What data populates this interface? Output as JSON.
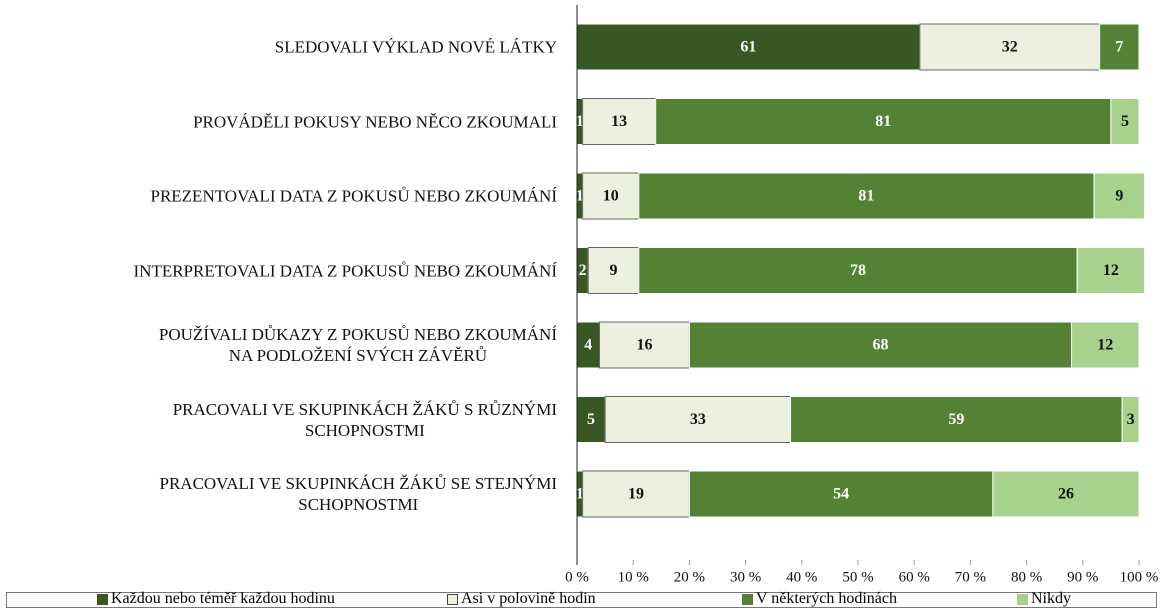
{
  "chart_data": {
    "type": "stacked_bar_horizontal",
    "categories": [
      "SLEDOVALI VÝKLAD NOVÉ LÁTKY",
      "PROVÁDĚLI POKUSY NEBO NĚCO ZKOUMALI",
      "PREZENTOVALI DATA Z POKUSŮ NEBO ZKOUMÁNÍ",
      "INTERPRETOVALI DATA Z POKUSŮ NEBO ZKOUMÁNÍ",
      "POUŽÍVALI DŮKAZY Z POKUSŮ NEBO ZKOUMÁNÍ\nNA PODLOŽENÍ SVÝCH ZÁVĚRŮ",
      "PRACOVALI VE SKUPINKÁCH ŽÁKŮ S RŮZNÝMI\nSCHOPNOSTMI",
      "PRACOVALI VE SKUPINKÁCH ŽÁKŮ SE STEJNÝMI\nSCHOPNOSTMI"
    ],
    "series": [
      {
        "name": "Každou nebo téměř každou hodinu",
        "color": "#385723",
        "label_color": "#ffffff",
        "values": [
          61,
          1,
          1,
          2,
          4,
          5,
          1
        ]
      },
      {
        "name": "Asi v polovině hodin",
        "color": "#ebf1de",
        "label_color": "#111111",
        "values": [
          32,
          13,
          10,
          9,
          16,
          33,
          19
        ]
      },
      {
        "name": "V některých hodinách",
        "color": "#548235",
        "label_color": "#ffffff",
        "values": [
          7,
          81,
          81,
          78,
          68,
          59,
          54
        ]
      },
      {
        "name": "Nikdy",
        "color": "#a9d18e",
        "label_color": "#111111",
        "values": [
          null,
          5,
          9,
          12,
          12,
          3,
          26
        ]
      }
    ],
    "xlim": [
      0,
      100
    ],
    "xticks": [
      {
        "value": 0,
        "label": "0 %"
      },
      {
        "value": 10,
        "label": "10 %"
      },
      {
        "value": 20,
        "label": "20 %"
      },
      {
        "value": 30,
        "label": "30 %"
      },
      {
        "value": 40,
        "label": "40 %"
      },
      {
        "value": 50,
        "label": "50 %"
      },
      {
        "value": 60,
        "label": "60 %"
      },
      {
        "value": 70,
        "label": "70 %"
      },
      {
        "value": 80,
        "label": "80 %"
      },
      {
        "value": 90,
        "label": "90 %"
      },
      {
        "value": 100,
        "label": "100 %"
      }
    ],
    "legend": "bottom"
  }
}
